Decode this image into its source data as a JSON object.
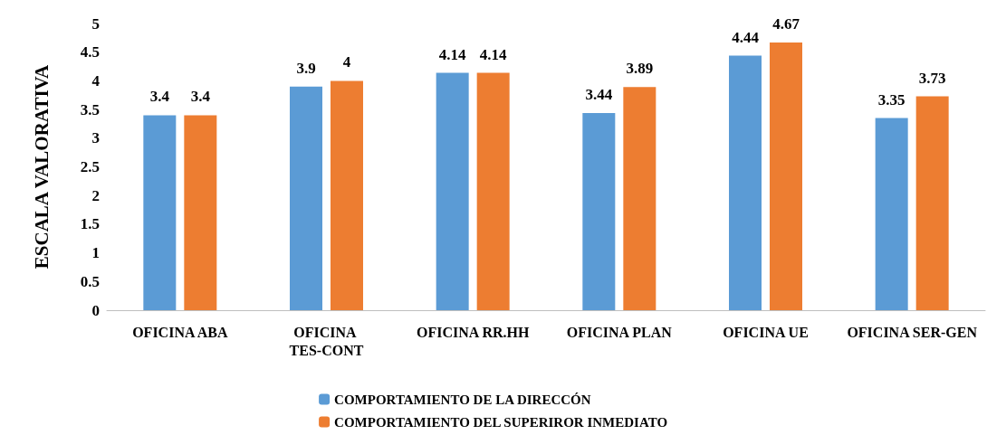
{
  "chart_data": {
    "type": "bar",
    "ylabel": "ESCALA VALORATIVA",
    "categories": [
      "OFICINA ABA",
      "OFICINA TES-CONT",
      "OFICINA RR.HH",
      "OFICINA PLAN",
      "OFICINA UE",
      "OFICINA SER-GEN"
    ],
    "series": [
      {
        "name": "COMPORTAMIENTO DE LA DIRECCÓN",
        "color": "#5b9bd5",
        "values": [
          3.4,
          3.9,
          4.14,
          3.44,
          4.44,
          3.35
        ]
      },
      {
        "name": "COMPORTAMIENTO DEL SUPERIROR INMEDIATO",
        "color": "#ed7d31",
        "values": [
          3.4,
          4,
          4.14,
          3.89,
          4.67,
          3.73
        ]
      }
    ],
    "ylim": [
      0,
      5
    ],
    "yticks": [
      0,
      0.5,
      1,
      1.5,
      2,
      2.5,
      3,
      3.5,
      4,
      4.5,
      5
    ],
    "data_labels": true,
    "grid": false,
    "legend": "bottom"
  }
}
